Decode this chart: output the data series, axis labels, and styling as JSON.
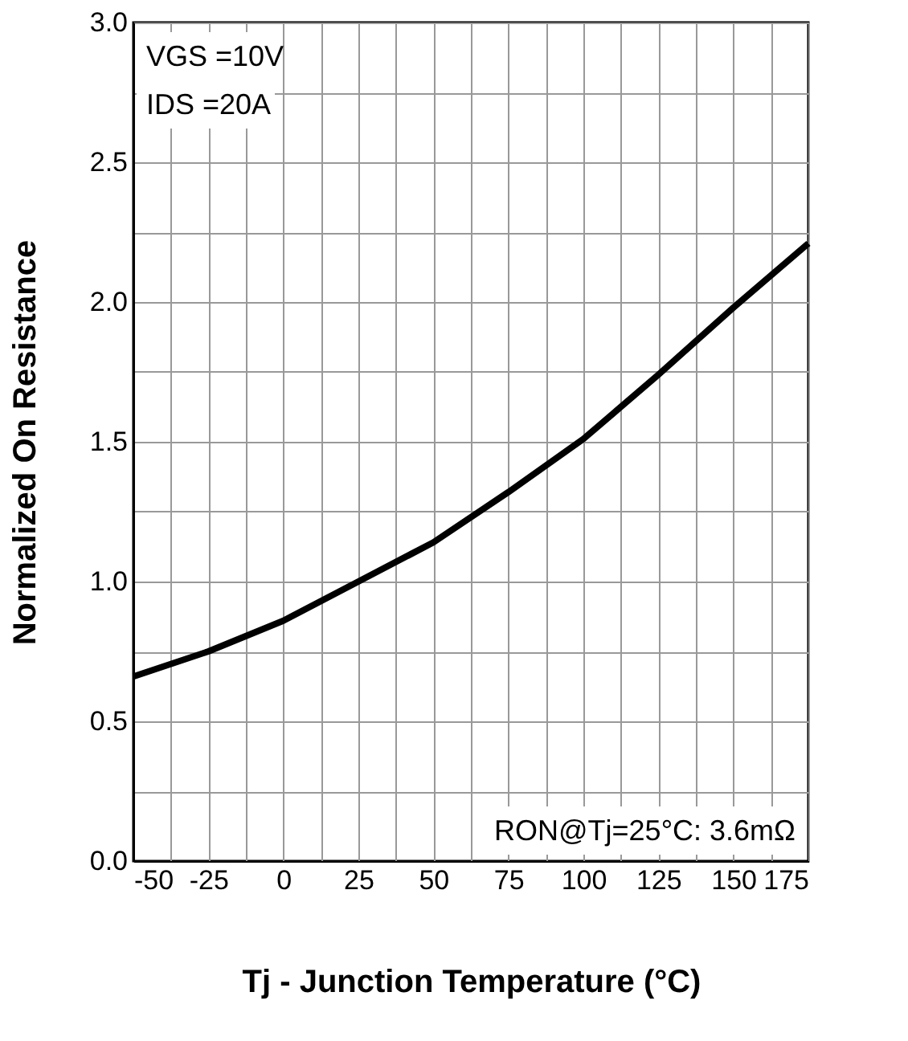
{
  "chart_data": {
    "type": "line",
    "xlabel": "Tj - Junction Temperature (°C)",
    "ylabel": "Normalized On Resistance",
    "x": [
      -50,
      -25,
      0,
      25,
      50,
      75,
      100,
      125,
      150,
      175
    ],
    "series": [
      {
        "color": "#000000",
        "values": [
          0.66,
          0.75,
          0.86,
          1.0,
          1.14,
          1.32,
          1.51,
          1.74,
          1.98,
          2.21
        ]
      }
    ],
    "xlim": [
      -50,
      175
    ],
    "ylim": [
      0,
      3
    ],
    "xticks": [
      -50,
      {
        "value": -37.5,
        "label": null
      },
      -25,
      {
        "value": -12.5,
        "label": null
      },
      0,
      {
        "value": 12.5,
        "label": null
      },
      25,
      {
        "value": 37.5,
        "label": null
      },
      50,
      {
        "value": 62.5,
        "label": null
      },
      75,
      {
        "value": 87.5,
        "label": null
      },
      100,
      {
        "value": 112.5,
        "label": null
      },
      125,
      {
        "value": 137.5,
        "label": null
      },
      150,
      {
        "value": 162.5,
        "label": null
      },
      175
    ],
    "yticks": [
      {
        "value": 0,
        "label": "0.0"
      },
      {
        "value": 0.25,
        "label": null
      },
      0.5,
      {
        "value": 0.75,
        "label": null
      },
      {
        "value": 1,
        "label": "1.0"
      },
      {
        "value": 1.25,
        "label": null
      },
      1.5,
      {
        "value": 1.75,
        "label": null
      },
      {
        "value": 2,
        "label": "2.0"
      },
      {
        "value": 2.25,
        "label": null
      },
      2.5,
      {
        "value": 2.75,
        "label": null
      },
      {
        "value": 3,
        "label": "3.0"
      }
    ],
    "annotations": [
      "VGS =10V",
      "IDS =20A",
      "RON@Tj=25°C: 3.6mΩ"
    ],
    "grid": true,
    "marker": "none",
    "line_style": "solid"
  }
}
